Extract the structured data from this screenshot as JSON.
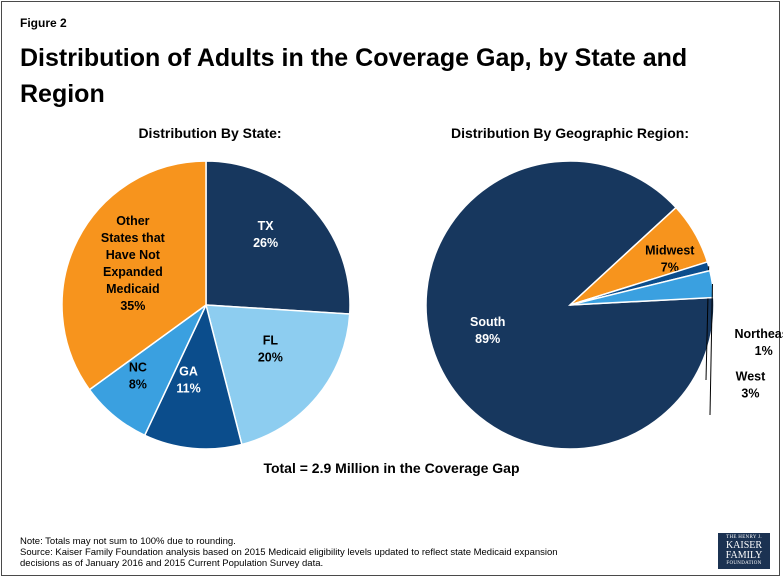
{
  "figure_label": "Figure 2",
  "title": "Distribution of Adults in the Coverage Gap, by State and Region",
  "total_text": "Total = 2.9 Million in the Coverage Gap",
  "note_line1": "Note: Totals may not sum to 100% due to rounding.",
  "note_line2": "Source: Kaiser Family Foundation analysis based on 2015 Medicaid eligibility levels updated to reflect state Medicaid expansion",
  "note_line3": "decisions as of January 2016 and 2015 Current Population Survey data.",
  "logo": {
    "line1": "THE HENRY J.",
    "line2": "KAISER",
    "line3": "FAMILY",
    "line4": "FOUNDATION"
  },
  "chart_data": [
    {
      "type": "pie",
      "title": "Distribution By State:",
      "slices": [
        {
          "label": "TX",
          "value": 26,
          "text": "26%",
          "color": "#17375e"
        },
        {
          "label": "FL",
          "value": 20,
          "text": "20%",
          "color": "#8dcdf0"
        },
        {
          "label": "GA",
          "value": 11,
          "text": "11%",
          "color": "#0b4d8c"
        },
        {
          "label": "NC",
          "value": 8,
          "text": "8%",
          "color": "#3aa0e0"
        },
        {
          "label": "Other States that Have Not Expanded Medicaid",
          "value": 35,
          "text": "35%",
          "color": "#f7941d"
        }
      ]
    },
    {
      "type": "pie",
      "title": "Distribution By Geographic Region:",
      "slices": [
        {
          "label": "South",
          "value": 89,
          "text": "89%",
          "color": "#17375e"
        },
        {
          "label": "Midwest",
          "value": 7,
          "text": "7%",
          "color": "#f7941d"
        },
        {
          "label": "Northeast",
          "value": 1,
          "text": "1%",
          "color": "#0b4d8c"
        },
        {
          "label": "West",
          "value": 3,
          "text": "3%",
          "color": "#3aa0e0"
        }
      ]
    }
  ]
}
